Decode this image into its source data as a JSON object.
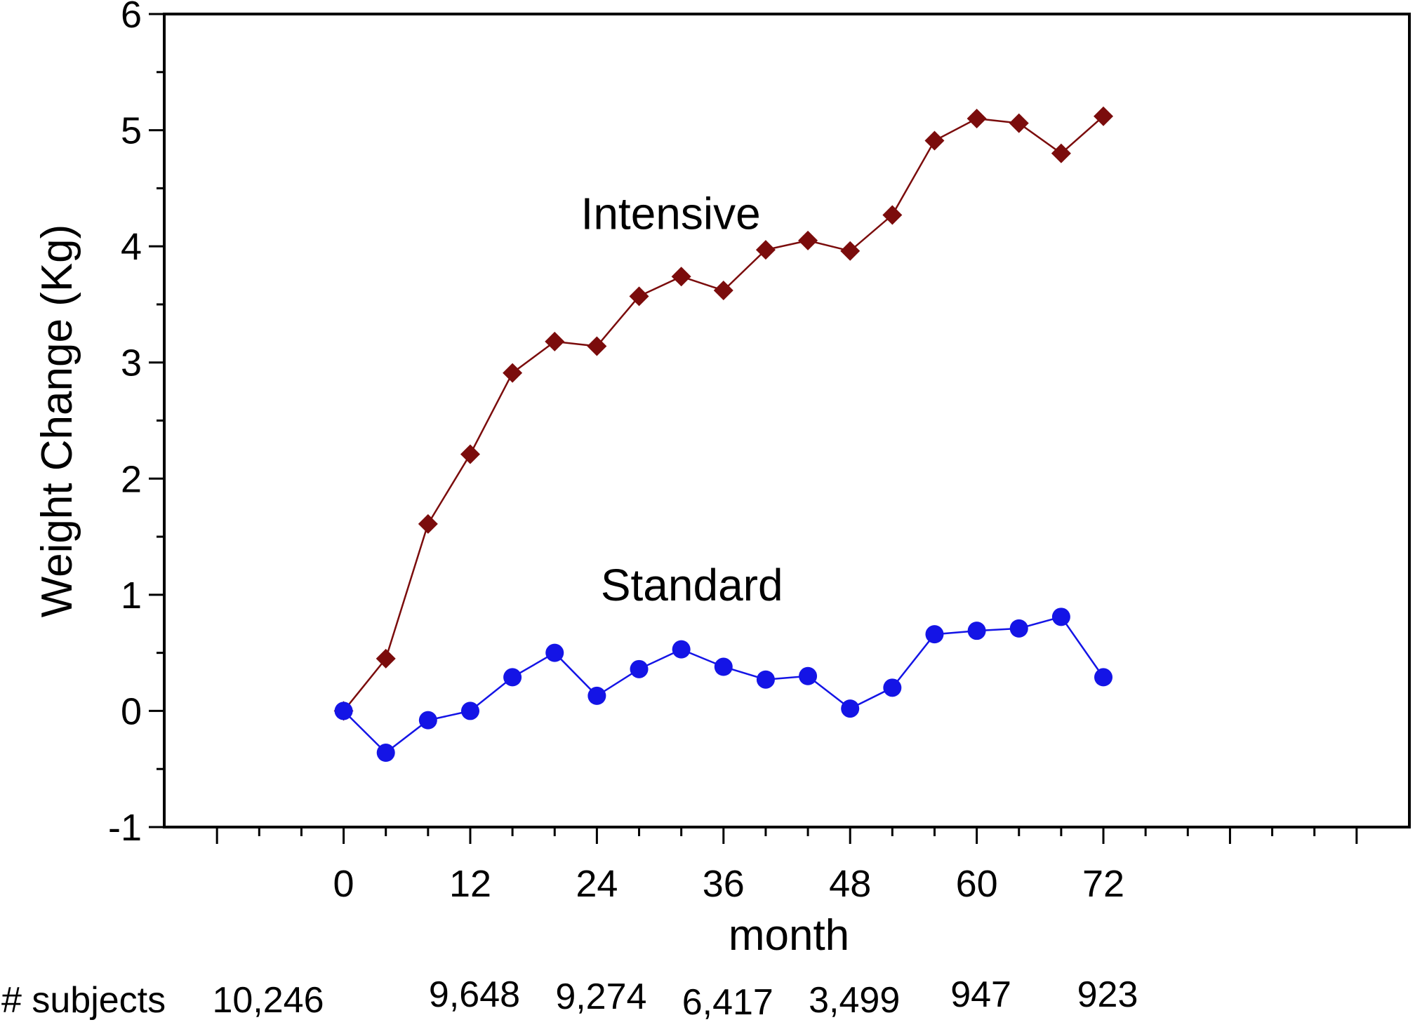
{
  "chart_data": {
    "type": "line",
    "xlabel": "month",
    "ylabel": "Weight Change (Kg)",
    "xlim": [
      -17,
      101
    ],
    "ylim": [
      -1,
      6
    ],
    "x_ticks": [
      0,
      12,
      24,
      36,
      48,
      60,
      72
    ],
    "x_tick_labels": [
      "0",
      "12",
      "24",
      "36",
      "48",
      "60",
      "72"
    ],
    "y_ticks": [
      -1,
      0,
      1,
      2,
      3,
      4,
      5,
      6
    ],
    "y_tick_labels": [
      "-1",
      "0",
      "1",
      "2",
      "3",
      "4",
      "5",
      "6"
    ],
    "grid": false,
    "legend": "none",
    "series": [
      {
        "name": "Intensive",
        "color": "#7b0c0c",
        "marker": "diamond",
        "x": [
          0,
          4,
          8,
          12,
          16,
          20,
          24,
          28,
          32,
          36,
          40,
          44,
          48,
          52,
          56,
          60,
          64,
          68,
          72
        ],
        "values": [
          0,
          0.45,
          1.61,
          2.21,
          2.91,
          3.18,
          3.14,
          3.57,
          3.74,
          3.62,
          3.97,
          4.05,
          3.96,
          4.27,
          4.91,
          5.1,
          5.06,
          4.8,
          5.12
        ]
      },
      {
        "name": "Standard",
        "color": "#1414e6",
        "marker": "circle",
        "x": [
          0,
          4,
          8,
          12,
          16,
          20,
          24,
          28,
          32,
          36,
          40,
          44,
          48,
          52,
          56,
          60,
          64,
          68,
          72
        ],
        "values": [
          0,
          -0.36,
          -0.08,
          0,
          0.29,
          0.5,
          0.13,
          0.36,
          0.53,
          0.38,
          0.27,
          0.3,
          0.02,
          0.2,
          0.66,
          0.69,
          0.71,
          0.81,
          0.29
        ]
      }
    ],
    "annotations": [
      {
        "text": "Intensive",
        "x": 31,
        "y": 4.15
      },
      {
        "text": "Standard",
        "x": 33,
        "y": 0.95
      }
    ],
    "subjects": {
      "label": "# subjects",
      "months": [
        0,
        12,
        24,
        36,
        48,
        60,
        72
      ],
      "values": [
        "10,246",
        "9,648",
        "9,274",
        "6,417",
        "3,499",
        "947",
        "923"
      ]
    }
  }
}
